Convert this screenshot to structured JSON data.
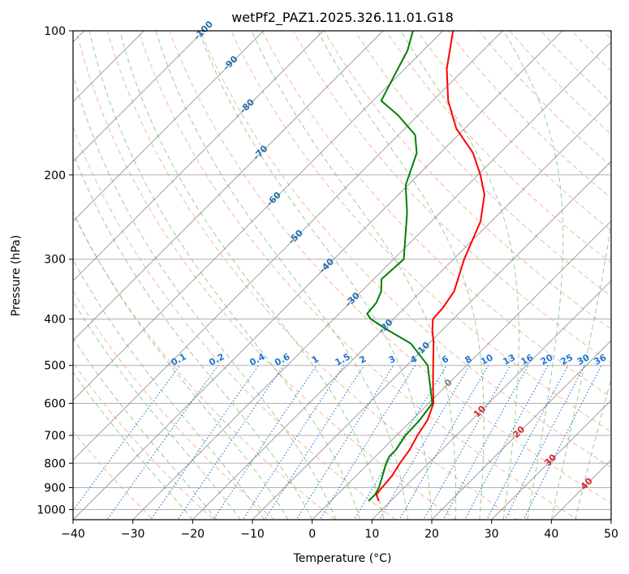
{
  "chart_data": {
    "type": "line",
    "subtype": "skew-t log-p",
    "title": "wetPf2_PAZ1.2025.326.11.01.G18",
    "xlabel": "Temperature (°C)",
    "ylabel": "Pressure (hPa)",
    "xlim": [
      -40,
      50
    ],
    "ylim": [
      1050,
      100
    ],
    "x_ticks": [
      -40,
      -30,
      -20,
      -10,
      0,
      10,
      20,
      30,
      40,
      50
    ],
    "x_tick_labels": [
      "−40",
      "−30",
      "−20",
      "−10",
      "0",
      "10",
      "20",
      "30",
      "40",
      "50"
    ],
    "y_ticks": [
      1000,
      900,
      800,
      700,
      600,
      500,
      400,
      300,
      200,
      100
    ],
    "y_tick_labels": [
      "1000",
      "900",
      "800",
      "700",
      "600",
      "500",
      "400",
      "300",
      "200",
      "100"
    ],
    "grid": true,
    "colors": {
      "temperature": "#ff0000",
      "dewpoint": "#008000",
      "isotherm": "#808080",
      "dry_adiabat": "#f4a582",
      "moist_adiabat": "#7fbf7f",
      "mixing_ratio": "#1f77d4",
      "hgz_label": "#1f6fb0",
      "warm_label": "#d62728",
      "zero_label": "#808080"
    },
    "series": [
      {
        "name": "Temperature",
        "color": "#ff0000",
        "points": [
          {
            "p": 960,
            "t": 8.0
          },
          {
            "p": 930,
            "t": 6.5
          },
          {
            "p": 900,
            "t": 6.3
          },
          {
            "p": 850,
            "t": 6.0
          },
          {
            "p": 800,
            "t": 5.2
          },
          {
            "p": 750,
            "t": 4.6
          },
          {
            "p": 700,
            "t": 3.5
          },
          {
            "p": 650,
            "t": 2.6
          },
          {
            "p": 600,
            "t": 0.8
          },
          {
            "p": 550,
            "t": -2.3
          },
          {
            "p": 500,
            "t": -5.6
          },
          {
            "p": 450,
            "t": -9.2
          },
          {
            "p": 420,
            "t": -11.8
          },
          {
            "p": 400,
            "t": -13.4
          },
          {
            "p": 380,
            "t": -13.6
          },
          {
            "p": 350,
            "t": -14.5
          },
          {
            "p": 300,
            "t": -18.2
          },
          {
            "p": 250,
            "t": -21.8
          },
          {
            "p": 220,
            "t": -25.6
          },
          {
            "p": 200,
            "t": -29.6
          },
          {
            "p": 180,
            "t": -34.5
          },
          {
            "p": 160,
            "t": -41.4
          },
          {
            "p": 140,
            "t": -47.4
          },
          {
            "p": 120,
            "t": -53.0
          },
          {
            "p": 100,
            "t": -58.3
          }
        ]
      },
      {
        "name": "Dewpoint",
        "color": "#008000",
        "points": [
          {
            "p": 960,
            "t": 6.3
          },
          {
            "p": 930,
            "t": 6.3
          },
          {
            "p": 900,
            "t": 5.8
          },
          {
            "p": 850,
            "t": 4.4
          },
          {
            "p": 800,
            "t": 2.9
          },
          {
            "p": 775,
            "t": 2.3
          },
          {
            "p": 750,
            "t": 2.3
          },
          {
            "p": 700,
            "t": 1.5
          },
          {
            "p": 650,
            "t": 1.3
          },
          {
            "p": 600,
            "t": 0.6
          },
          {
            "p": 550,
            "t": -2.8
          },
          {
            "p": 500,
            "t": -6.5
          },
          {
            "p": 450,
            "t": -13.0
          },
          {
            "p": 420,
            "t": -19.5
          },
          {
            "p": 400,
            "t": -23.8
          },
          {
            "p": 390,
            "t": -25.3
          },
          {
            "p": 370,
            "t": -25.6
          },
          {
            "p": 350,
            "t": -26.7
          },
          {
            "p": 330,
            "t": -28.7
          },
          {
            "p": 300,
            "t": -28.3
          },
          {
            "p": 270,
            "t": -31.7
          },
          {
            "p": 240,
            "t": -35.5
          },
          {
            "p": 210,
            "t": -40.4
          },
          {
            "p": 180,
            "t": -43.9
          },
          {
            "p": 165,
            "t": -47.2
          },
          {
            "p": 150,
            "t": -53.4
          },
          {
            "p": 140,
            "t": -58.6
          },
          {
            "p": 125,
            "t": -60.5
          },
          {
            "p": 110,
            "t": -62.6
          },
          {
            "p": 100,
            "t": -65.0
          }
        ]
      }
    ],
    "isotherm_labels": [
      {
        "text": "-100",
        "t": -100,
        "p": 100
      },
      {
        "text": "-90",
        "t": -90,
        "p": 117
      },
      {
        "text": "-80",
        "t": -80,
        "p": 144
      },
      {
        "text": "-70",
        "t": -70,
        "p": 180
      },
      {
        "text": "-60",
        "t": -60,
        "p": 225
      },
      {
        "text": "-50",
        "t": -50,
        "p": 270
      },
      {
        "text": "-40",
        "t": -40,
        "p": 310
      },
      {
        "text": "-30",
        "t": -30,
        "p": 365
      },
      {
        "text": "-20",
        "t": -20,
        "p": 415
      },
      {
        "text": "-10",
        "t": -10,
        "p": 463
      },
      {
        "text": "0",
        "t": 0,
        "p": 545
      },
      {
        "text": "10",
        "t": 10,
        "p": 625
      },
      {
        "text": "20",
        "t": 20,
        "p": 690
      },
      {
        "text": "30",
        "t": 30,
        "p": 790
      },
      {
        "text": "40",
        "t": 40,
        "p": 885
      }
    ],
    "mixing_ratio_labels": [
      "0.1",
      "0.2",
      "0.4",
      "0.6",
      "1",
      "1.5",
      "2",
      "3",
      "4",
      "6",
      "8",
      "10",
      "13",
      "16",
      "20",
      "25",
      "30",
      "36"
    ],
    "mixing_ratio_label_pressure": 500
  }
}
